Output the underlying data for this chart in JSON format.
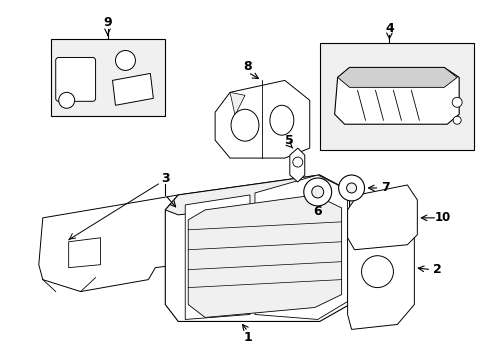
{
  "background_color": "#ffffff",
  "line_color": "#000000",
  "fig_width": 4.89,
  "fig_height": 3.6,
  "dpi": 100,
  "gray_fill": "#e8e8e8",
  "light_gray": "#f0f0f0",
  "mid_gray": "#d0d0d0"
}
